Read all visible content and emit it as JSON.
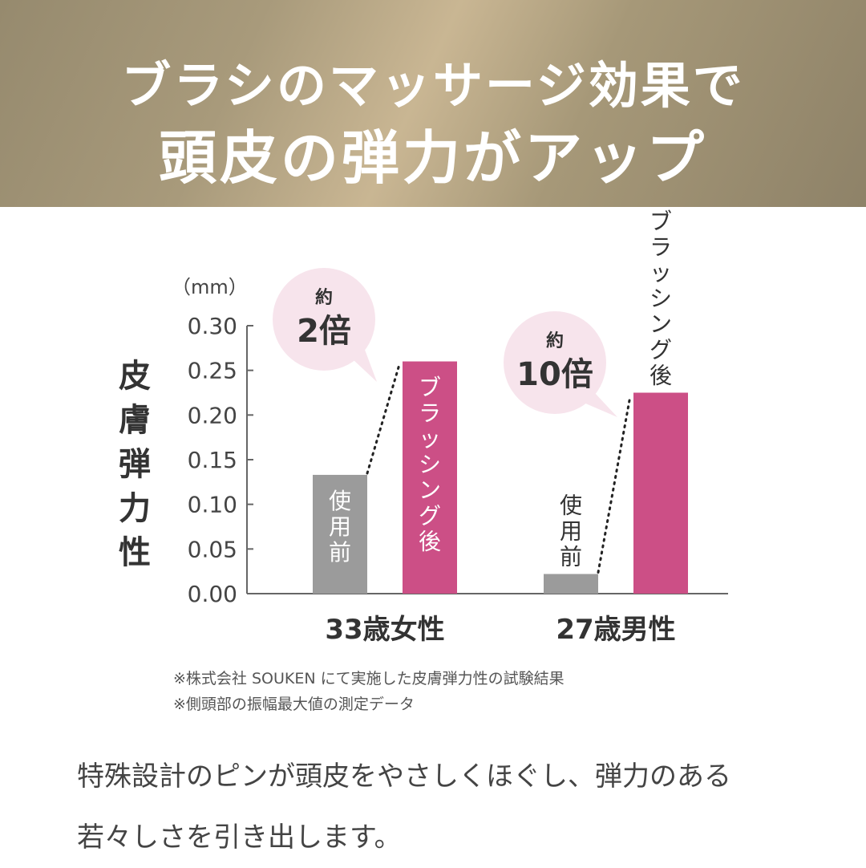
{
  "banner": {
    "line1": "ブラシのマッサージ効果で",
    "line2": "頭皮の弾力がアップ"
  },
  "chart_data": {
    "type": "bar",
    "unit_label": "（mm）",
    "ylabel": "皮膚弾力性",
    "ylim": [
      0,
      0.3
    ],
    "yticks": [
      "0.00",
      "0.05",
      "0.10",
      "0.15",
      "0.20",
      "0.25",
      "0.30"
    ],
    "categories": [
      "33歳女性",
      "27歳男性"
    ],
    "series": [
      {
        "name": "使用前",
        "values": [
          0.133,
          0.022
        ],
        "color": "#9b9b9b"
      },
      {
        "name": "ブラッシング後",
        "values": [
          0.26,
          0.225
        ],
        "color": "#cc4f86"
      }
    ],
    "annotations": [
      {
        "prefix": "約",
        "value": "2倍"
      },
      {
        "prefix": "約",
        "value": "10倍"
      }
    ]
  },
  "notes": [
    "※株式会社 SOUKEN にて実施した皮膚弾力性の試験結果",
    "※側頭部の振幅最大値の測定データ"
  ],
  "description": [
    "特殊設計のピンが頭皮をやさしくほぐし、弾力のある",
    "若々しさを引き出します。"
  ],
  "colors": {
    "bubble": "#f7e4ec",
    "axis": "#666666",
    "banner_gold": "#c9b693"
  }
}
